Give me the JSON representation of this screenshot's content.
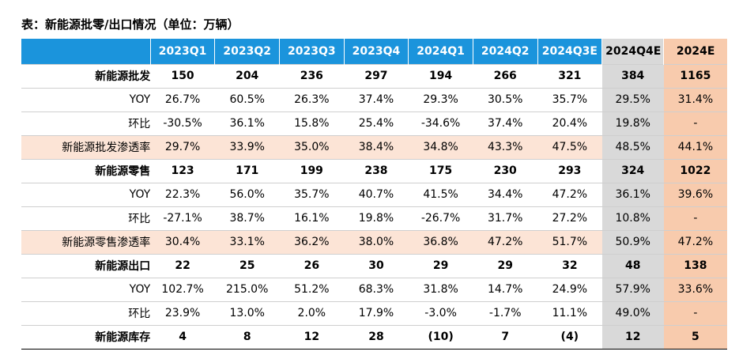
{
  "title": "表：新能源批零/出口情况（单位：万辆）",
  "columns": [
    "2023Q1",
    "2023Q2",
    "2023Q3",
    "2023Q4",
    "2024Q1",
    "2024Q2",
    "2024Q3E",
    "2024Q4E",
    "2024E"
  ],
  "rows": [
    {
      "label": "新能源批发",
      "style": "bold",
      "values": [
        "150",
        "204",
        "236",
        "297",
        "194",
        "266",
        "321",
        "384",
        "1165"
      ]
    },
    {
      "label": "YOY",
      "style": "normal",
      "values": [
        "26.7%",
        "60.5%",
        "26.3%",
        "37.4%",
        "29.3%",
        "30.5%",
        "35.7%",
        "29.5%",
        "31.4%"
      ]
    },
    {
      "label": "环比",
      "style": "normal",
      "values": [
        "-30.5%",
        "36.1%",
        "15.8%",
        "25.4%",
        "-34.6%",
        "37.4%",
        "20.4%",
        "19.8%",
        "-"
      ]
    },
    {
      "label": "新能源批发渗透率",
      "style": "pen",
      "values": [
        "29.7%",
        "33.9%",
        "35.0%",
        "38.4%",
        "34.8%",
        "43.3%",
        "47.5%",
        "48.5%",
        "44.1%"
      ]
    },
    {
      "label": "新能源零售",
      "style": "bold",
      "values": [
        "123",
        "171",
        "199",
        "238",
        "175",
        "230",
        "293",
        "324",
        "1022"
      ]
    },
    {
      "label": "YOY",
      "style": "normal",
      "values": [
        "22.3%",
        "56.0%",
        "35.7%",
        "40.7%",
        "41.5%",
        "34.4%",
        "47.2%",
        "36.1%",
        "39.6%"
      ]
    },
    {
      "label": "环比",
      "style": "normal",
      "values": [
        "-27.1%",
        "38.7%",
        "16.1%",
        "19.8%",
        "-26.7%",
        "31.7%",
        "27.2%",
        "10.8%",
        "-"
      ]
    },
    {
      "label": "新能源零售渗透率",
      "style": "pen",
      "values": [
        "30.4%",
        "33.1%",
        "36.2%",
        "38.0%",
        "36.8%",
        "47.2%",
        "51.7%",
        "50.9%",
        "47.2%"
      ]
    },
    {
      "label": "新能源出口",
      "style": "bold",
      "values": [
        "22",
        "25",
        "26",
        "30",
        "29",
        "29",
        "32",
        "48",
        "138"
      ]
    },
    {
      "label": "YOY",
      "style": "normal",
      "values": [
        "102.7%",
        "215.0%",
        "51.2%",
        "68.3%",
        "31.8%",
        "14.7%",
        "24.9%",
        "57.9%",
        "33.6%"
      ]
    },
    {
      "label": "环比",
      "style": "normal",
      "values": [
        "23.9%",
        "13.0%",
        "2.0%",
        "17.9%",
        "-3.0%",
        "-1.7%",
        "11.1%",
        "49.0%",
        "-"
      ]
    },
    {
      "label": "新能源库存",
      "style": "bold",
      "values": [
        "4",
        "8",
        "12",
        "28",
        "(10)",
        "7",
        "(4)",
        "12",
        "5"
      ]
    }
  ]
}
